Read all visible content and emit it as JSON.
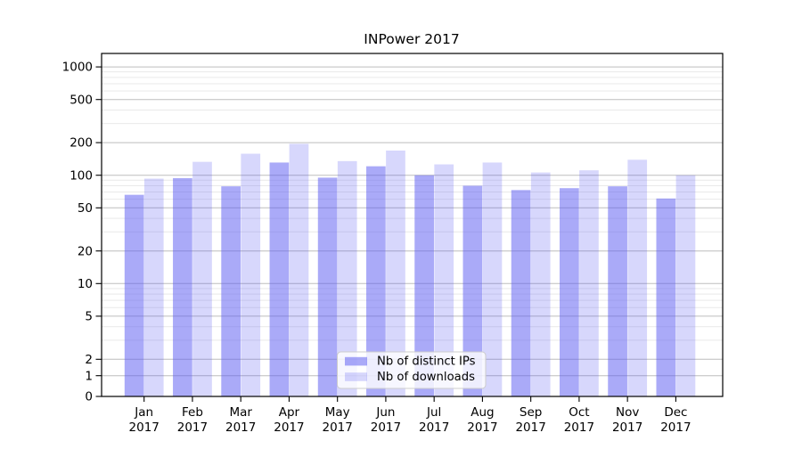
{
  "figure": {
    "title": "INPower 2017"
  },
  "chart_data": {
    "type": "bar",
    "title": "INPower 2017",
    "yscale": "symlog",
    "grid": true,
    "grid_minor": true,
    "legend_position": "lower center",
    "ylim": [
      0,
      1300
    ],
    "yticks": [
      0,
      1,
      2,
      5,
      10,
      20,
      50,
      100,
      200,
      500,
      1000
    ],
    "minor_gridline_values": [
      3,
      4,
      6,
      7,
      8,
      9,
      30,
      40,
      60,
      70,
      80,
      90,
      300,
      400,
      600,
      700,
      800,
      900
    ],
    "categories": [
      "Jan",
      "Feb",
      "Mar",
      "Apr",
      "May",
      "Jun",
      "Jul",
      "Aug",
      "Sep",
      "Oct",
      "Nov",
      "Dec"
    ],
    "category_year": "2017",
    "series": [
      {
        "key": "distinct-ips",
        "name": "Nb of distinct IPs",
        "color_hex": "#aaaaf9",
        "fill": "rgba(85,85,242,0.5)",
        "values": [
          66,
          94,
          79,
          131,
          95,
          121,
          100,
          80,
          73,
          76,
          79,
          61
        ]
      },
      {
        "key": "downloads",
        "name": "Nb of downloads",
        "color_hex": "#d9d9fa",
        "fill": "rgba(85,85,242,0.235)",
        "values": [
          93,
          133,
          158,
          195,
          135,
          169,
          126,
          131,
          106,
          111,
          139,
          100
        ]
      }
    ],
    "colors": {
      "major_grid": "#bdbdbd",
      "minor_grid": "#e9e9e9",
      "spine": "#000000",
      "legend_border": "#cccccc"
    }
  }
}
